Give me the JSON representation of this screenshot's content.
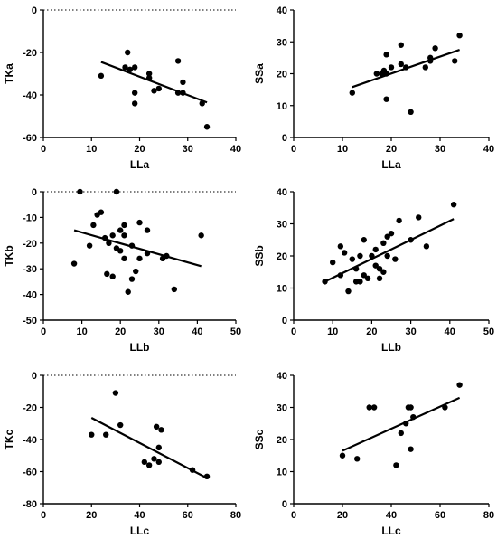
{
  "chart_data": [
    {
      "type": "scatter",
      "xlabel": "LLa",
      "ylabel": "TKa",
      "xlim": [
        0,
        40
      ],
      "ylim": [
        -60,
        0
      ],
      "xticks": [
        0,
        10,
        20,
        30,
        40
      ],
      "yticks": [
        0,
        -20,
        -40,
        -60
      ],
      "zero_line": true,
      "points": [
        [
          12,
          -31
        ],
        [
          17,
          -27
        ],
        [
          17.5,
          -20
        ],
        [
          18,
          -28
        ],
        [
          19,
          -27
        ],
        [
          19,
          -44
        ],
        [
          19,
          -39
        ],
        [
          22,
          -30
        ],
        [
          22,
          -32
        ],
        [
          23,
          -38
        ],
        [
          24,
          -37
        ],
        [
          28,
          -39
        ],
        [
          28,
          -24
        ],
        [
          29,
          -34
        ],
        [
          29,
          -39
        ],
        [
          33,
          -44
        ],
        [
          34,
          -55
        ]
      ],
      "fit": [
        [
          12,
          -24.5
        ],
        [
          34,
          -43.5
        ]
      ]
    },
    {
      "type": "scatter",
      "xlabel": "LLa",
      "ylabel": "SSa",
      "xlim": [
        0,
        40
      ],
      "ylim": [
        0,
        40
      ],
      "xticks": [
        0,
        10,
        20,
        30,
        40
      ],
      "yticks": [
        0,
        10,
        20,
        30,
        40
      ],
      "zero_line": false,
      "points": [
        [
          12,
          14
        ],
        [
          17,
          20
        ],
        [
          18,
          20
        ],
        [
          18.5,
          21
        ],
        [
          19,
          20
        ],
        [
          19,
          26
        ],
        [
          19,
          12
        ],
        [
          20,
          22
        ],
        [
          22,
          29
        ],
        [
          22,
          23
        ],
        [
          23,
          22
        ],
        [
          24,
          8
        ],
        [
          27,
          22
        ],
        [
          28,
          24
        ],
        [
          28,
          25
        ],
        [
          29,
          28
        ],
        [
          33,
          24
        ],
        [
          34,
          32
        ]
      ],
      "fit": [
        [
          12,
          15.8
        ],
        [
          34,
          27.5
        ]
      ]
    },
    {
      "type": "scatter",
      "xlabel": "LLb",
      "ylabel": "TKb",
      "xlim": [
        0,
        50
      ],
      "ylim": [
        -50,
        0
      ],
      "xticks": [
        0,
        10,
        20,
        30,
        40,
        50
      ],
      "yticks": [
        0,
        -10,
        -20,
        -30,
        -40,
        -50
      ],
      "zero_line": true,
      "points": [
        [
          8,
          -28
        ],
        [
          9.5,
          0
        ],
        [
          12,
          -21
        ],
        [
          13,
          -13
        ],
        [
          14,
          -9
        ],
        [
          15,
          -8
        ],
        [
          16,
          -18
        ],
        [
          16.5,
          -32
        ],
        [
          17,
          -20
        ],
        [
          18,
          -33
        ],
        [
          18,
          -17
        ],
        [
          19,
          0
        ],
        [
          19,
          -22
        ],
        [
          20,
          -15
        ],
        [
          20,
          -23
        ],
        [
          21,
          -13
        ],
        [
          21,
          -17
        ],
        [
          21,
          -26
        ],
        [
          22,
          -39
        ],
        [
          23,
          -34
        ],
        [
          23,
          -21
        ],
        [
          24,
          -31
        ],
        [
          25,
          -12
        ],
        [
          25,
          -26
        ],
        [
          27,
          -15
        ],
        [
          27,
          -24
        ],
        [
          31,
          -26
        ],
        [
          32,
          -25
        ],
        [
          34,
          -38
        ],
        [
          41,
          -17
        ]
      ],
      "fit": [
        [
          8,
          -15
        ],
        [
          41,
          -29
        ]
      ]
    },
    {
      "type": "scatter",
      "xlabel": "LLb",
      "ylabel": "SSb",
      "xlim": [
        0,
        50
      ],
      "ylim": [
        0,
        40
      ],
      "xticks": [
        0,
        10,
        20,
        30,
        40,
        50
      ],
      "yticks": [
        0,
        10,
        20,
        30,
        40
      ],
      "zero_line": false,
      "points": [
        [
          8,
          12
        ],
        [
          10,
          18
        ],
        [
          12,
          14
        ],
        [
          12,
          23
        ],
        [
          13,
          21
        ],
        [
          14,
          9
        ],
        [
          15,
          19
        ],
        [
          16,
          16
        ],
        [
          16,
          12
        ],
        [
          17,
          12
        ],
        [
          17,
          20
        ],
        [
          18,
          14
        ],
        [
          18,
          25
        ],
        [
          19,
          13
        ],
        [
          20,
          20
        ],
        [
          21,
          22
        ],
        [
          21,
          17
        ],
        [
          22,
          16
        ],
        [
          22,
          13
        ],
        [
          23,
          15
        ],
        [
          23,
          24
        ],
        [
          24,
          26
        ],
        [
          24,
          20
        ],
        [
          25,
          27
        ],
        [
          26,
          19
        ],
        [
          27,
          31
        ],
        [
          30,
          25
        ],
        [
          32,
          32
        ],
        [
          34,
          23
        ],
        [
          41,
          36
        ]
      ],
      "fit": [
        [
          8,
          12
        ],
        [
          41,
          31.5
        ]
      ]
    },
    {
      "type": "scatter",
      "xlabel": "LLc",
      "ylabel": "TKc",
      "xlim": [
        0,
        80
      ],
      "ylim": [
        -80,
        0
      ],
      "xticks": [
        0,
        20,
        40,
        60,
        80
      ],
      "yticks": [
        0,
        -20,
        -40,
        -60,
        -80
      ],
      "zero_line": true,
      "points": [
        [
          20,
          -37
        ],
        [
          26,
          -37
        ],
        [
          30,
          -11
        ],
        [
          32,
          -31
        ],
        [
          42,
          -54
        ],
        [
          44,
          -56
        ],
        [
          46,
          -52
        ],
        [
          47,
          -32
        ],
        [
          48,
          -45
        ],
        [
          48,
          -54
        ],
        [
          49,
          -34
        ],
        [
          62,
          -59
        ],
        [
          68,
          -63
        ]
      ],
      "fit": [
        [
          20,
          -26.5
        ],
        [
          68,
          -64
        ]
      ]
    },
    {
      "type": "scatter",
      "xlabel": "LLc",
      "ylabel": "SSc",
      "xlim": [
        0,
        80
      ],
      "ylim": [
        0,
        40
      ],
      "xticks": [
        0,
        20,
        40,
        60,
        80
      ],
      "yticks": [
        0,
        10,
        20,
        30,
        40
      ],
      "zero_line": false,
      "points": [
        [
          20,
          15
        ],
        [
          26,
          14
        ],
        [
          31,
          30
        ],
        [
          33,
          30
        ],
        [
          42,
          12
        ],
        [
          44,
          22
        ],
        [
          46,
          25
        ],
        [
          47,
          30
        ],
        [
          48,
          17
        ],
        [
          48,
          30
        ],
        [
          49,
          27
        ],
        [
          62,
          30
        ],
        [
          68,
          37
        ]
      ],
      "fit": [
        [
          20,
          16.5
        ],
        [
          68,
          33
        ]
      ]
    }
  ]
}
